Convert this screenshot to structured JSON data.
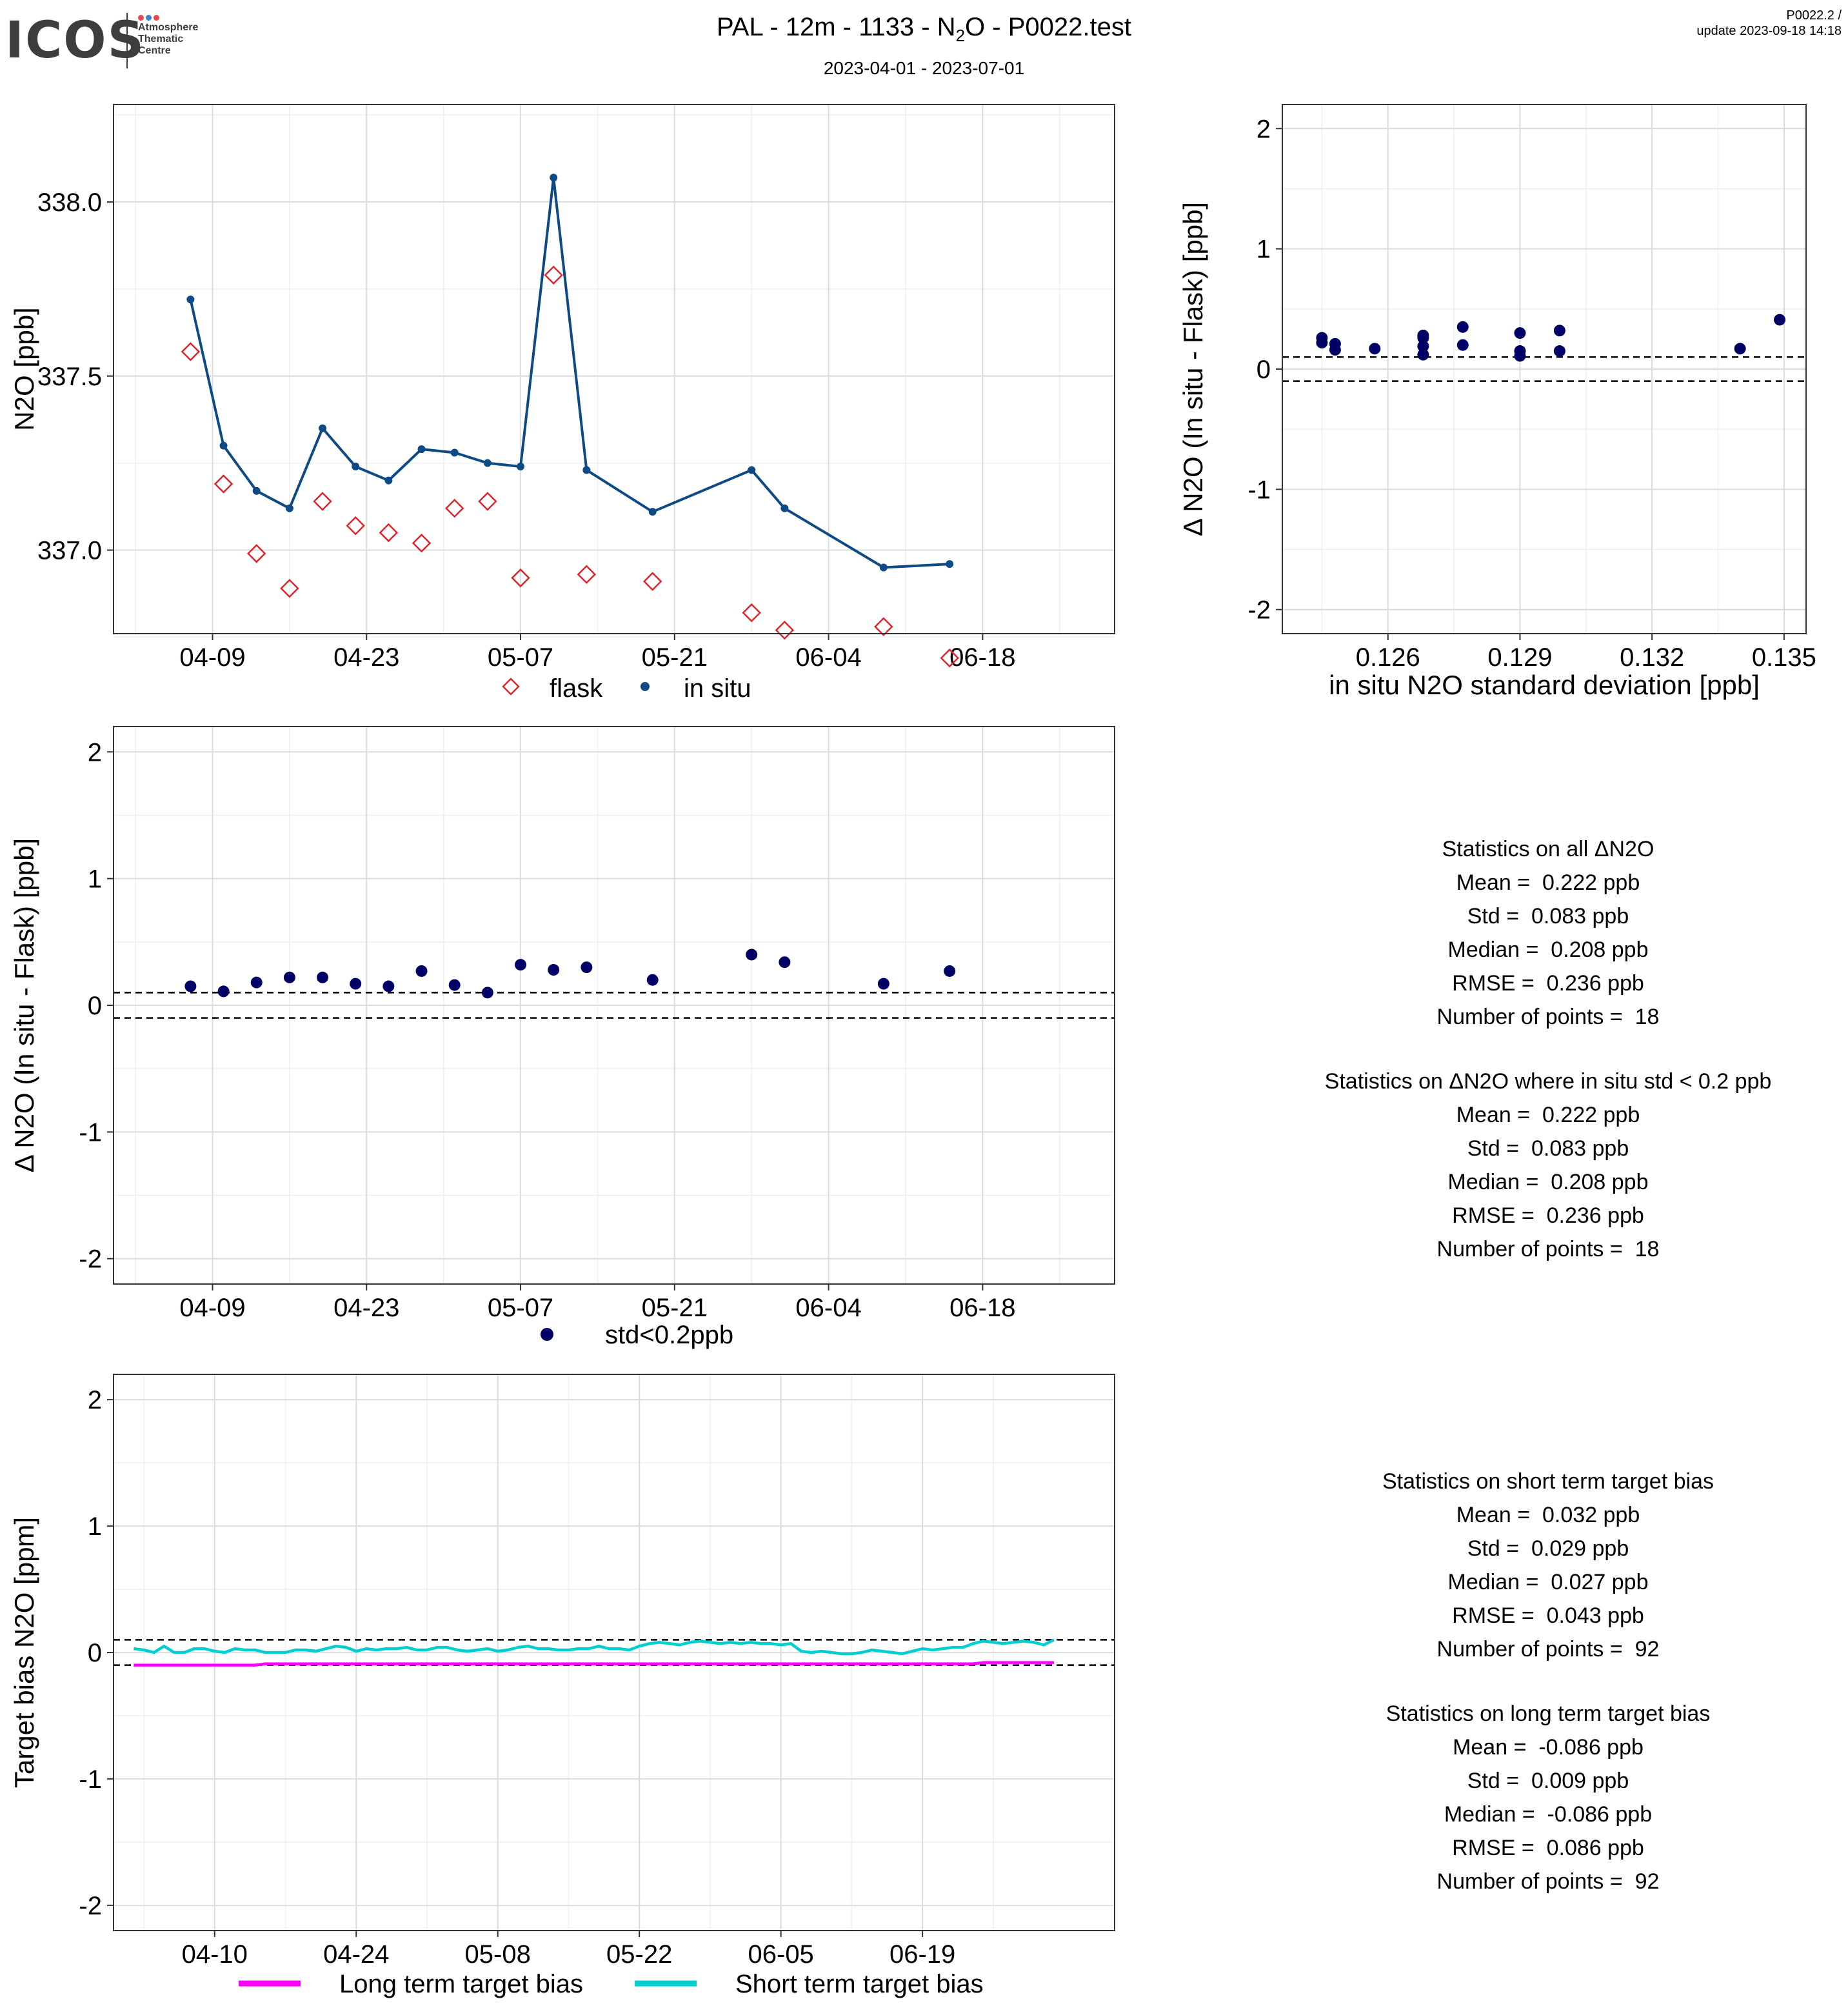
{
  "header": {
    "logo": {
      "word": "ICOS",
      "lines": [
        "Atmosphere",
        "Thematic",
        "Centre"
      ],
      "dot_colors": [
        "#e8454f",
        "#3b82d6",
        "#e8454f"
      ]
    },
    "title_before": "PAL - 12m - 1133 - N",
    "title_sub": "2",
    "title_after": "O - P0022.test",
    "date_range": "2023-04-01 - 2023-07-01",
    "version": "P0022.2 /",
    "update": "update  2023-09-18 14:18"
  },
  "colors": {
    "insitu_line": "#0d4a86",
    "flask": "#e0252a",
    "delta_points": "#000066",
    "long_term": "#ff00ff",
    "short_term": "#00ced1"
  },
  "chart_data": [
    {
      "id": "timeseries",
      "type": "line",
      "ylabel": "N2O [ppb]",
      "ylim": [
        336.76,
        338.28
      ],
      "yticks": [
        337.0,
        337.5,
        338.0
      ],
      "ytick_labels": [
        "337.0",
        "337.5",
        "338.0"
      ],
      "xlim": [
        "2023-03-31",
        "2023-06-30"
      ],
      "xticks": [
        "2023-04-09",
        "2023-04-23",
        "2023-05-07",
        "2023-05-21",
        "2023-06-04",
        "2023-06-18"
      ],
      "xtick_labels": [
        "04-09",
        "04-23",
        "05-07",
        "05-21",
        "06-04",
        "06-18"
      ],
      "legend": [
        "flask",
        "in situ"
      ],
      "legend_position": "bottom",
      "grid": true,
      "series": [
        {
          "name": "in situ",
          "kind": "line",
          "x": [
            "2023-04-07",
            "2023-04-10",
            "2023-04-13",
            "2023-04-16",
            "2023-04-19",
            "2023-04-22",
            "2023-04-25",
            "2023-04-28",
            "2023-05-01",
            "2023-05-04",
            "2023-05-07",
            "2023-05-10",
            "2023-05-13",
            "2023-05-19",
            "2023-05-28",
            "2023-05-31",
            "2023-06-09",
            "2023-06-15"
          ],
          "y": [
            337.72,
            337.3,
            337.17,
            337.12,
            337.35,
            337.24,
            337.2,
            337.29,
            337.28,
            337.25,
            337.24,
            338.07,
            337.23,
            337.11,
            337.23,
            337.12,
            336.95,
            336.96
          ]
        },
        {
          "name": "flask",
          "kind": "diamond",
          "x": [
            "2023-04-07",
            "2023-04-10",
            "2023-04-13",
            "2023-04-16",
            "2023-04-19",
            "2023-04-22",
            "2023-04-25",
            "2023-04-28",
            "2023-05-01",
            "2023-05-04",
            "2023-05-07",
            "2023-05-10",
            "2023-05-13",
            "2023-05-19",
            "2023-05-28",
            "2023-05-31",
            "2023-06-09",
            "2023-06-15"
          ],
          "y": [
            337.57,
            337.19,
            336.99,
            336.89,
            337.14,
            337.07,
            337.05,
            337.02,
            337.12,
            337.14,
            336.92,
            337.79,
            336.93,
            336.91,
            336.82,
            336.77,
            336.78,
            336.69
          ]
        }
      ]
    },
    {
      "id": "delta-vs-std",
      "type": "scatter",
      "ylabel": "Δ N2O (In situ - Flask) [ppb]",
      "xlabel": "in situ N2O standard deviation [ppb]",
      "xlim": [
        0.1236,
        0.1355
      ],
      "ylim": [
        -2.2,
        2.2
      ],
      "xticks": [
        0.126,
        0.129,
        0.132,
        0.135
      ],
      "xtick_labels": [
        "0.126",
        "0.129",
        "0.132",
        "0.135"
      ],
      "yticks": [
        -2,
        -1,
        0,
        1,
        2
      ],
      "ytick_labels": [
        "-2",
        "-1",
        "0",
        "1",
        "2"
      ],
      "hlines": [
        0.1,
        -0.1
      ],
      "grid": true,
      "x": [
        0.1245,
        0.1245,
        0.1248,
        0.1248,
        0.1257,
        0.1268,
        0.1268,
        0.1268,
        0.1268,
        0.1277,
        0.1277,
        0.129,
        0.129,
        0.129,
        0.1299,
        0.1299,
        0.134,
        0.1349
      ],
      "y": [
        0.26,
        0.22,
        0.21,
        0.16,
        0.17,
        0.28,
        0.26,
        0.19,
        0.12,
        0.35,
        0.2,
        0.3,
        0.15,
        0.11,
        0.32,
        0.15,
        0.17,
        0.41
      ]
    },
    {
      "id": "delta-timeseries",
      "type": "scatter",
      "ylabel": "Δ N2O (In situ - Flask) [ppb]",
      "xlim": [
        "2023-03-31",
        "2023-06-30"
      ],
      "ylim": [
        -2.2,
        2.2
      ],
      "xticks": [
        "2023-04-09",
        "2023-04-23",
        "2023-05-07",
        "2023-05-21",
        "2023-06-04",
        "2023-06-18"
      ],
      "xtick_labels": [
        "04-09",
        "04-23",
        "05-07",
        "05-21",
        "06-04",
        "06-18"
      ],
      "yticks": [
        -2,
        -1,
        0,
        1,
        2
      ],
      "ytick_labels": [
        "-2",
        "-1",
        "0",
        "1",
        "2"
      ],
      "hlines": [
        0.1,
        -0.1
      ],
      "legend": [
        "std<0.2ppb"
      ],
      "legend_position": "bottom",
      "grid": true,
      "x": [
        "2023-04-07",
        "2023-04-10",
        "2023-04-13",
        "2023-04-16",
        "2023-04-19",
        "2023-04-22",
        "2023-04-25",
        "2023-04-28",
        "2023-05-01",
        "2023-05-04",
        "2023-05-07",
        "2023-05-10",
        "2023-05-13",
        "2023-05-19",
        "2023-05-28",
        "2023-05-31",
        "2023-06-09",
        "2023-06-15"
      ],
      "y": [
        0.15,
        0.11,
        0.18,
        0.22,
        0.22,
        0.17,
        0.15,
        0.27,
        0.16,
        0.1,
        0.32,
        0.28,
        0.3,
        0.2,
        0.4,
        0.34,
        0.17,
        0.27
      ]
    },
    {
      "id": "target-bias",
      "type": "line",
      "ylabel": "Target bias N2O [ppm]",
      "xlim": [
        "2023-03-31",
        "2023-07-08"
      ],
      "ylim": [
        -2.2,
        2.2
      ],
      "xticks": [
        "2023-04-10",
        "2023-04-24",
        "2023-05-08",
        "2023-05-22",
        "2023-06-05",
        "2023-06-19"
      ],
      "xtick_labels": [
        "04-10",
        "04-24",
        "05-08",
        "05-22",
        "06-05",
        "06-19"
      ],
      "yticks": [
        -2,
        -1,
        0,
        1,
        2
      ],
      "ytick_labels": [
        "-2",
        "-1",
        "0",
        "1",
        "2"
      ],
      "hlines": [
        0.1,
        -0.1
      ],
      "legend": [
        "Long term target bias",
        "Short term target bias"
      ],
      "legend_position": "bottom",
      "grid": true,
      "x_start": "2023-04-02",
      "series": [
        {
          "name": "Long term target bias",
          "values": [
            -0.1,
            -0.1,
            -0.1,
            -0.1,
            -0.1,
            -0.1,
            -0.1,
            -0.1,
            -0.1,
            -0.1,
            -0.1,
            -0.1,
            -0.1,
            -0.09,
            -0.09,
            -0.09,
            -0.09,
            -0.09,
            -0.09,
            -0.09,
            -0.09,
            -0.09,
            -0.09,
            -0.09,
            -0.09,
            -0.09,
            -0.09,
            -0.09,
            -0.09,
            -0.09,
            -0.09,
            -0.09,
            -0.09,
            -0.09,
            -0.09,
            -0.09,
            -0.09,
            -0.09,
            -0.09,
            -0.09,
            -0.09,
            -0.09,
            -0.09,
            -0.09,
            -0.09,
            -0.09,
            -0.09,
            -0.09,
            -0.09,
            -0.09,
            -0.09,
            -0.09,
            -0.09,
            -0.09,
            -0.09,
            -0.09,
            -0.09,
            -0.09,
            -0.09,
            -0.09,
            -0.09,
            -0.09,
            -0.09,
            -0.09,
            -0.09,
            -0.09,
            -0.09,
            -0.09,
            -0.09,
            -0.09,
            -0.09,
            -0.09,
            -0.09,
            -0.09,
            -0.09,
            -0.09,
            -0.09,
            -0.09,
            -0.09,
            -0.09,
            -0.09,
            -0.09,
            -0.09,
            -0.09,
            -0.08,
            -0.08,
            -0.08,
            -0.08,
            -0.08,
            -0.08,
            -0.08,
            -0.08
          ]
        },
        {
          "name": "Short term target bias",
          "values": [
            0.03,
            0.02,
            0.0,
            0.05,
            0.0,
            0.0,
            0.03,
            0.03,
            0.01,
            0.0,
            0.03,
            0.02,
            0.02,
            0.0,
            0.0,
            0.0,
            0.02,
            0.02,
            0.01,
            0.03,
            0.05,
            0.04,
            0.01,
            0.03,
            0.02,
            0.03,
            0.03,
            0.04,
            0.02,
            0.02,
            0.04,
            0.04,
            0.02,
            0.01,
            0.02,
            0.03,
            0.01,
            0.02,
            0.04,
            0.05,
            0.03,
            0.03,
            0.02,
            0.02,
            0.03,
            0.03,
            0.05,
            0.03,
            0.03,
            0.02,
            0.05,
            0.07,
            0.08,
            0.07,
            0.06,
            0.08,
            0.09,
            0.08,
            0.07,
            0.08,
            0.07,
            0.08,
            0.07,
            0.07,
            0.06,
            0.07,
            0.01,
            0.0,
            0.01,
            0.0,
            -0.01,
            -0.01,
            0.0,
            0.02,
            0.01,
            0.0,
            -0.01,
            0.01,
            0.03,
            0.02,
            0.03,
            0.04,
            0.04,
            0.07,
            0.09,
            0.08,
            0.07,
            0.08,
            0.09,
            0.08,
            0.06,
            0.1
          ]
        }
      ]
    }
  ],
  "stats_delta": {
    "all": [
      "Statistics on all ΔN2O",
      "Mean =  0.222 ppb",
      "Std =  0.083 ppb",
      "Median =  0.208 ppb",
      "RMSE =  0.236 ppb",
      "Number of points =  18"
    ],
    "filtered": [
      "Statistics on ΔN2O where in situ std < 0.2 ppb",
      "Mean =  0.222 ppb",
      "Std =  0.083 ppb",
      "Median =  0.208 ppb",
      "RMSE =  0.236 ppb",
      "Number of points =  18"
    ]
  },
  "stats_bias": {
    "short": [
      "Statistics on short term target bias",
      "Mean =  0.032 ppb",
      "Std =  0.029 ppb",
      "Median =  0.027 ppb",
      "RMSE =  0.043 ppb",
      "Number of points =  92"
    ],
    "long": [
      "Statistics on long term target bias",
      "Mean =  -0.086 ppb",
      "Std =  0.009 ppb",
      "Median =  -0.086 ppb",
      "RMSE =  0.086 ppb",
      "Number of points =  92"
    ]
  }
}
